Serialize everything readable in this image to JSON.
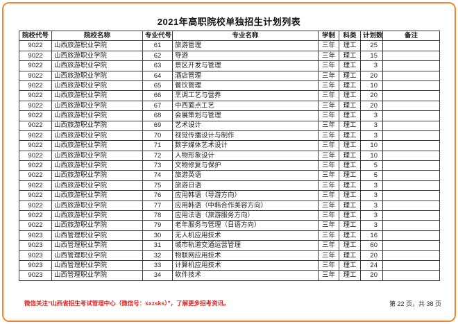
{
  "page": {
    "title": "2021年高职院校单独招生计划列表",
    "footer_note": "微信关注“山西省招生考试管理中心（微信号：sxzsks）”，了解更多招考资讯。",
    "page_indicator": "第 22 页，共 38 页",
    "border_color": "#f08632",
    "note_color": "#e02222"
  },
  "table": {
    "headers": [
      "院校代号",
      "院校名称",
      "专业代号",
      "专业名称",
      "学制",
      "科类",
      "计划数",
      "备注"
    ],
    "rows": [
      [
        "9022",
        "山西旅游职业学院",
        "61",
        "旅游管理",
        "三年",
        "理工",
        "25",
        ""
      ],
      [
        "9022",
        "山西旅游职业学院",
        "62",
        "导游",
        "三年",
        "理工",
        "15",
        ""
      ],
      [
        "9022",
        "山西旅游职业学院",
        "63",
        "景区开发与管理",
        "三年",
        "理工",
        "3",
        ""
      ],
      [
        "9022",
        "山西旅游职业学院",
        "64",
        "酒店管理",
        "三年",
        "理工",
        "20",
        ""
      ],
      [
        "9022",
        "山西旅游职业学院",
        "65",
        "餐饮管理",
        "三年",
        "理工",
        "10",
        ""
      ],
      [
        "9022",
        "山西旅游职业学院",
        "66",
        "烹调工艺与营养",
        "三年",
        "理工",
        "20",
        ""
      ],
      [
        "9022",
        "山西旅游职业学院",
        "67",
        "中西面点工艺",
        "三年",
        "理工",
        "20",
        ""
      ],
      [
        "9022",
        "山西旅游职业学院",
        "68",
        "会展策划与管理",
        "三年",
        "理工",
        "3",
        ""
      ],
      [
        "9022",
        "山西旅游职业学院",
        "69",
        "艺术设计",
        "三年",
        "理工",
        "3",
        ""
      ],
      [
        "9022",
        "山西旅游职业学院",
        "70",
        "视觉传播设计与制作",
        "三年",
        "理工",
        "3",
        ""
      ],
      [
        "9022",
        "山西旅游职业学院",
        "71",
        "数字媒体艺术设计",
        "三年",
        "理工",
        "10",
        ""
      ],
      [
        "9022",
        "山西旅游职业学院",
        "72",
        "人物形象设计",
        "三年",
        "理工",
        "10",
        ""
      ],
      [
        "9022",
        "山西旅游职业学院",
        "73",
        "文物修复与保护",
        "三年",
        "理工",
        "5",
        ""
      ],
      [
        "9022",
        "山西旅游职业学院",
        "74",
        "旅游英语",
        "三年",
        "理工",
        "5",
        ""
      ],
      [
        "9022",
        "山西旅游职业学院",
        "75",
        "旅游日语",
        "三年",
        "理工",
        "3",
        ""
      ],
      [
        "9022",
        "山西旅游职业学院",
        "76",
        "应用韩语（导游方向）",
        "三年",
        "理工",
        "3",
        ""
      ],
      [
        "9022",
        "山西旅游职业学院",
        "77",
        "应用韩语（中韩合作美容方向）",
        "三年",
        "理工",
        "3",
        ""
      ],
      [
        "9022",
        "山西旅游职业学院",
        "78",
        "应用法语（旅游服务方向）",
        "三年",
        "理工",
        "3",
        ""
      ],
      [
        "9022",
        "山西旅游职业学院",
        "79",
        "老年服务与管理（日语方向）",
        "三年",
        "理工",
        "3",
        ""
      ],
      [
        "9023",
        "山西管理职业学院",
        "30",
        "无人机应用技术",
        "三年",
        "理工",
        "16",
        ""
      ],
      [
        "9023",
        "山西管理职业学院",
        "31",
        "城市轨道交通运营管理",
        "三年",
        "理工",
        "60",
        ""
      ],
      [
        "9023",
        "山西管理职业学院",
        "32",
        "物联网应用技术",
        "三年",
        "理工",
        "20",
        ""
      ],
      [
        "9023",
        "山西管理职业学院",
        "33",
        "计算机应用技术",
        "三年",
        "理工",
        "24",
        ""
      ],
      [
        "9023",
        "山西管理职业学院",
        "34",
        "软件技术",
        "三年",
        "理工",
        "20",
        ""
      ]
    ]
  }
}
